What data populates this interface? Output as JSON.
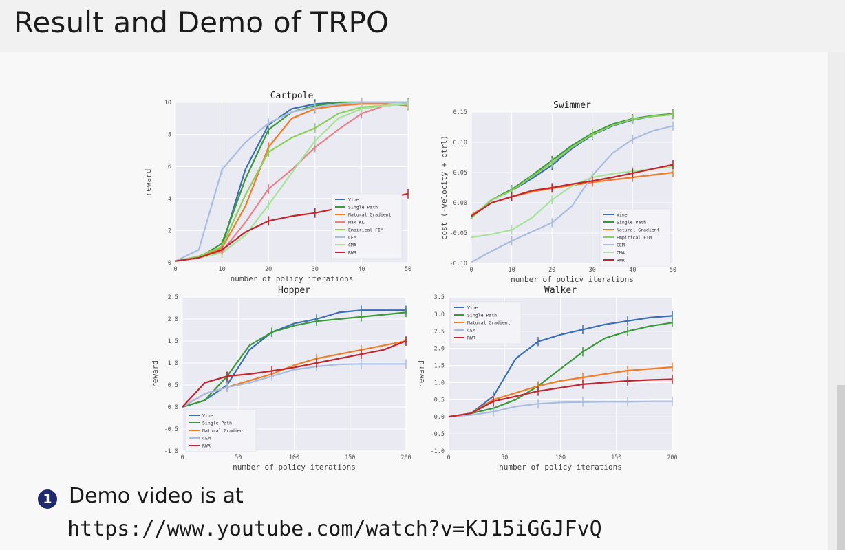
{
  "slide": {
    "title": "Result and Demo of TRPO",
    "bullet_number": "1",
    "bullet_text": "Demo video is at",
    "url": "https://www.youtube.com/watch?v=KJ15iGGJFvQ"
  },
  "colors": {
    "Vine": "#3b6eb5",
    "Single Path": "#3a9a3a",
    "Natural Gradient": "#f07d26",
    "Max KL": "#e7818b",
    "Empirical FIM": "#8ccf5b",
    "CEM": "#a9bde0",
    "CMA": "#a7e39a",
    "RWR": "#c4242b"
  },
  "chart_data": [
    {
      "id": "cartpole",
      "type": "line",
      "title": "Cartpole",
      "xlabel": "number of policy iterations",
      "ylabel": "reward",
      "xlim": [
        0,
        50
      ],
      "ylim": [
        0,
        10
      ],
      "xticks": [
        0,
        10,
        20,
        30,
        40,
        50
      ],
      "yticks": [
        0,
        2,
        4,
        6,
        8,
        10
      ],
      "ytick_labels": [
        "0",
        "2",
        "4",
        "6",
        "8",
        "10"
      ],
      "grid": true,
      "legend": "lower-right",
      "x": [
        0,
        5,
        10,
        15,
        20,
        25,
        30,
        35,
        40,
        45,
        50
      ],
      "series": [
        {
          "name": "Vine",
          "values": [
            0.1,
            0.3,
            1.0,
            5.8,
            8.6,
            9.6,
            9.9,
            10,
            10,
            10,
            10
          ]
        },
        {
          "name": "Single Path",
          "values": [
            0.1,
            0.3,
            1.2,
            5.2,
            8.3,
            9.4,
            9.8,
            10,
            10,
            10,
            10
          ]
        },
        {
          "name": "Natural Gradient",
          "values": [
            0.1,
            0.3,
            0.9,
            3.5,
            7.2,
            9.0,
            9.6,
            9.8,
            9.9,
            9.9,
            9.8
          ]
        },
        {
          "name": "Max KL",
          "values": [
            0.1,
            0.3,
            0.7,
            2.5,
            4.6,
            5.8,
            7.2,
            8.3,
            9.3,
            9.8,
            9.9
          ]
        },
        {
          "name": "Empirical FIM",
          "values": [
            0.1,
            0.4,
            1.0,
            4.2,
            6.9,
            7.8,
            8.4,
            9.3,
            9.7,
            9.8,
            9.9
          ]
        },
        {
          "name": "CEM",
          "values": [
            0.1,
            0.8,
            5.8,
            7.5,
            8.7,
            9.4,
            9.7,
            9.9,
            10,
            10,
            10
          ]
        },
        {
          "name": "CMA",
          "values": [
            0.1,
            0.3,
            0.6,
            1.7,
            3.6,
            5.6,
            7.6,
            9.0,
            9.6,
            9.8,
            9.9
          ]
        },
        {
          "name": "RWR",
          "values": [
            0.1,
            0.3,
            0.8,
            1.9,
            2.6,
            2.9,
            3.1,
            3.4,
            3.7,
            4.0,
            4.3
          ]
        }
      ]
    },
    {
      "id": "swimmer",
      "type": "line",
      "title": "Swimmer",
      "xlabel": "number of policy iterations",
      "ylabel": "cost (-velocity + ctrl)",
      "xlim": [
        0,
        50
      ],
      "ylim": [
        -0.1,
        0.15
      ],
      "xticks": [
        0,
        10,
        20,
        30,
        40,
        50
      ],
      "yticks": [
        -0.1,
        -0.05,
        0.0,
        0.05,
        0.1,
        0.15
      ],
      "ytick_labels": [
        "-0.10",
        "-0.05",
        "0.00",
        "0.05",
        "0.10",
        "0.15"
      ],
      "grid": true,
      "legend": "lower-right",
      "x": [
        0,
        5,
        10,
        15,
        20,
        25,
        30,
        35,
        40,
        45,
        50
      ],
      "series": [
        {
          "name": "Vine",
          "values": [
            -0.025,
            0.005,
            0.02,
            0.04,
            0.062,
            0.09,
            0.112,
            0.127,
            0.137,
            0.143,
            0.146
          ]
        },
        {
          "name": "Single Path",
          "values": [
            -0.025,
            0.005,
            0.022,
            0.045,
            0.07,
            0.095,
            0.115,
            0.13,
            0.139,
            0.144,
            0.147
          ]
        },
        {
          "name": "Natural Gradient",
          "values": [
            -0.02,
            0.0,
            0.01,
            0.018,
            0.024,
            0.029,
            0.034,
            0.038,
            0.042,
            0.046,
            0.05
          ]
        },
        {
          "name": "Empirical FIM",
          "values": [
            -0.025,
            0.005,
            0.02,
            0.043,
            0.066,
            0.092,
            0.113,
            0.128,
            0.138,
            0.143,
            0.146
          ]
        },
        {
          "name": "CEM",
          "values": [
            -0.098,
            -0.08,
            -0.063,
            -0.048,
            -0.033,
            -0.005,
            0.045,
            0.082,
            0.105,
            0.119,
            0.127
          ]
        },
        {
          "name": "CMA",
          "values": [
            -0.057,
            -0.052,
            -0.045,
            -0.025,
            0.005,
            0.028,
            0.042,
            0.048,
            0.052,
            0.056,
            0.06
          ]
        },
        {
          "name": "RWR",
          "values": [
            -0.022,
            0.0,
            0.01,
            0.02,
            0.025,
            0.031,
            0.036,
            0.042,
            0.049,
            0.056,
            0.063
          ]
        }
      ]
    },
    {
      "id": "hopper",
      "type": "line",
      "title": "Hopper",
      "xlabel": "number of policy iterations",
      "ylabel": "reward",
      "xlim": [
        0,
        200
      ],
      "ylim": [
        -1.0,
        2.5
      ],
      "xticks": [
        0,
        50,
        100,
        150,
        200
      ],
      "yticks": [
        -1.0,
        -0.5,
        0.0,
        0.5,
        1.0,
        1.5,
        2.0,
        2.5
      ],
      "ytick_labels": [
        "-1.0",
        "-0.5",
        "0.0",
        "0.5",
        "1.0",
        "1.5",
        "2.0",
        "2.5"
      ],
      "grid": true,
      "legend": "lower-left",
      "x": [
        0,
        20,
        40,
        60,
        80,
        100,
        120,
        140,
        160,
        180,
        200
      ],
      "series": [
        {
          "name": "Vine",
          "values": [
            0.0,
            0.15,
            0.5,
            1.3,
            1.7,
            1.9,
            2.0,
            2.15,
            2.2,
            2.2,
            2.2
          ]
        },
        {
          "name": "Single Path",
          "values": [
            0.0,
            0.15,
            0.7,
            1.4,
            1.7,
            1.85,
            1.95,
            2.0,
            2.05,
            2.1,
            2.15
          ]
        },
        {
          "name": "Natural Gradient",
          "values": [
            0.0,
            0.3,
            0.45,
            0.6,
            0.75,
            0.95,
            1.1,
            1.2,
            1.3,
            1.4,
            1.5
          ]
        },
        {
          "name": "CEM",
          "values": [
            0.0,
            0.3,
            0.45,
            0.55,
            0.7,
            0.85,
            0.92,
            0.97,
            0.98,
            0.98,
            0.98
          ]
        },
        {
          "name": "RWR",
          "values": [
            0.0,
            0.55,
            0.7,
            0.75,
            0.82,
            0.9,
            1.0,
            1.1,
            1.2,
            1.3,
            1.5
          ]
        }
      ]
    },
    {
      "id": "walker",
      "type": "line",
      "title": "Walker",
      "xlabel": "number of policy iterations",
      "ylabel": "reward",
      "xlim": [
        0,
        200
      ],
      "ylim": [
        -1.0,
        3.5
      ],
      "xticks": [
        0,
        50,
        100,
        150,
        200
      ],
      "yticks": [
        -1.0,
        -0.5,
        0.0,
        0.5,
        1.0,
        1.5,
        2.0,
        2.5,
        3.0,
        3.5
      ],
      "ytick_labels": [
        "-1.0",
        "-0.5",
        "0.0",
        "0.5",
        "1.0",
        "1.5",
        "2.0",
        "2.5",
        "3.0",
        "3.5"
      ],
      "grid": true,
      "legend": "upper-left",
      "x": [
        0,
        20,
        40,
        60,
        80,
        100,
        120,
        140,
        160,
        180,
        200
      ],
      "series": [
        {
          "name": "Vine",
          "values": [
            0.0,
            0.1,
            0.6,
            1.7,
            2.2,
            2.4,
            2.55,
            2.7,
            2.8,
            2.9,
            2.95
          ]
        },
        {
          "name": "Single Path",
          "values": [
            0.0,
            0.1,
            0.25,
            0.5,
            0.9,
            1.4,
            1.9,
            2.3,
            2.5,
            2.65,
            2.75
          ]
        },
        {
          "name": "Natural Gradient",
          "values": [
            0.0,
            0.1,
            0.5,
            0.7,
            0.9,
            1.05,
            1.15,
            1.25,
            1.35,
            1.4,
            1.45
          ]
        },
        {
          "name": "CEM",
          "values": [
            0.0,
            0.05,
            0.15,
            0.3,
            0.38,
            0.42,
            0.43,
            0.44,
            0.44,
            0.45,
            0.45
          ]
        },
        {
          "name": "RWR",
          "values": [
            0.0,
            0.1,
            0.45,
            0.6,
            0.75,
            0.85,
            0.95,
            1.0,
            1.05,
            1.08,
            1.1
          ]
        }
      ]
    }
  ]
}
